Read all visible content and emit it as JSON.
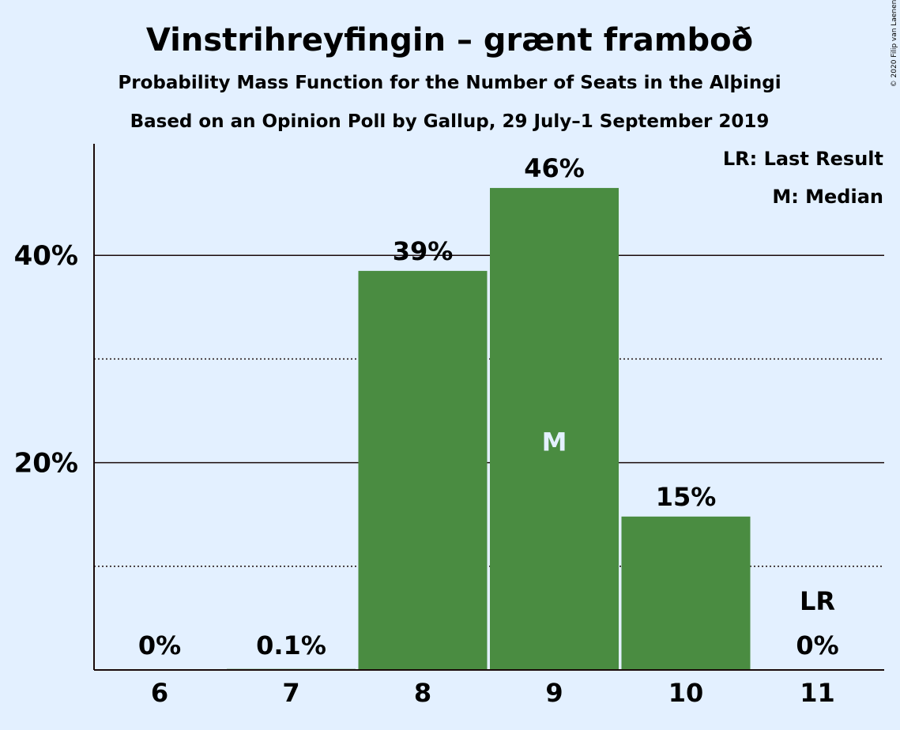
{
  "title": "Vinstrihreyfingin – grænt framboð",
  "subtitle1": "Probability Mass Function for the Number of Seats in the Alþingi",
  "subtitle2": "Based on an Opinion Poll by Gallup, 29 July–1 September 2019",
  "copyright": "© 2020 Filip van Laenen",
  "legend": [
    "LR: Last Result",
    "M: Median"
  ],
  "colors": {
    "bar": "#4a8c41",
    "background": "#e3f0ff",
    "text": "#1a0a0a"
  },
  "chart_data": {
    "type": "bar",
    "categories": [
      "6",
      "7",
      "8",
      "9",
      "10",
      "11"
    ],
    "values": [
      0,
      0.1,
      38.5,
      46.5,
      14.8,
      0
    ],
    "data_labels": [
      "0%",
      "0.1%",
      "39%",
      "46%",
      "15%",
      "0%"
    ],
    "y_ticks": [
      {
        "value": 20,
        "label": "20%"
      },
      {
        "value": 40,
        "label": "40%"
      }
    ],
    "minor_gridlines": [
      10,
      30
    ],
    "ylim": [
      0,
      50
    ],
    "median_category": "9",
    "median_label": "M",
    "last_result_category": "11",
    "last_result_label": "LR",
    "grid": true,
    "legend_position": "top-right"
  }
}
